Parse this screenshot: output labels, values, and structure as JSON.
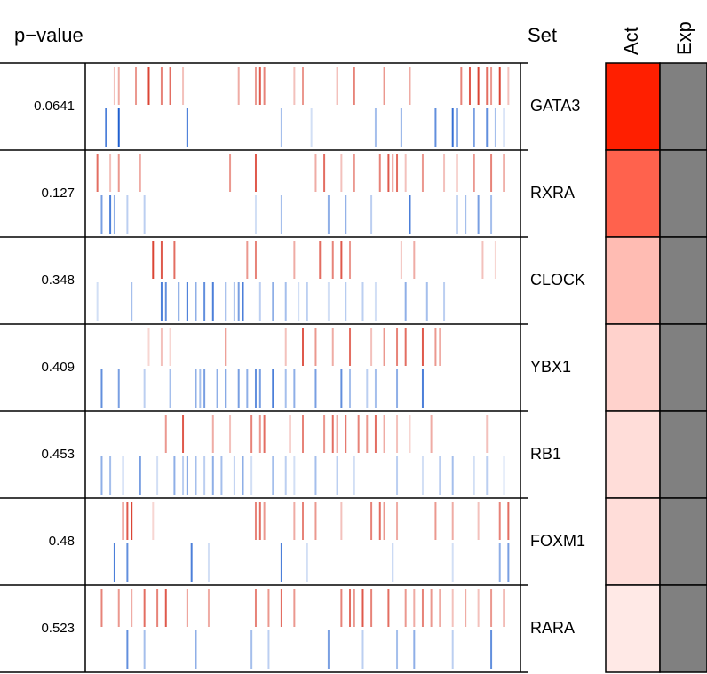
{
  "headers": {
    "pvalue": "p−value",
    "set": "Set",
    "act": "Act",
    "exp": "Exp"
  },
  "colors": {
    "red": "#d7301f",
    "blue": "#1f5fcf",
    "exp": "#808080",
    "act_max": "#ff1f00"
  },
  "chart_data": {
    "type": "barcode",
    "x_range": [
      0,
      1
    ],
    "rows": [
      {
        "set": "GATA3",
        "pvalue": "0.0641",
        "act": 1.0,
        "up": [
          [
            0.06,
            0.3
          ],
          [
            0.07,
            0.4
          ],
          [
            0.11,
            0.5
          ],
          [
            0.14,
            0.9
          ],
          [
            0.17,
            0.6
          ],
          [
            0.19,
            0.7
          ],
          [
            0.22,
            0.3
          ],
          [
            0.35,
            0.4
          ],
          [
            0.39,
            0.5
          ],
          [
            0.4,
            0.8
          ],
          [
            0.41,
            0.6
          ],
          [
            0.48,
            0.3
          ],
          [
            0.5,
            0.5
          ],
          [
            0.58,
            0.3
          ],
          [
            0.62,
            0.6
          ],
          [
            0.69,
            0.5
          ],
          [
            0.75,
            0.4
          ],
          [
            0.87,
            0.6
          ],
          [
            0.89,
            0.8
          ],
          [
            0.91,
            0.9
          ],
          [
            0.93,
            0.7
          ],
          [
            0.94,
            0.5
          ],
          [
            0.96,
            0.9
          ],
          [
            0.98,
            0.3
          ]
        ],
        "down": [
          [
            0.04,
            0.8
          ],
          [
            0.07,
            1.0
          ],
          [
            0.23,
            0.9
          ],
          [
            0.45,
            0.4
          ],
          [
            0.52,
            0.2
          ],
          [
            0.67,
            0.4
          ],
          [
            0.73,
            0.5
          ],
          [
            0.81,
            0.7
          ],
          [
            0.85,
            0.9
          ],
          [
            0.86,
            1.0
          ],
          [
            0.9,
            0.6
          ],
          [
            0.93,
            0.7
          ],
          [
            0.95,
            0.4
          ],
          [
            0.97,
            0.3
          ]
        ]
      },
      {
        "set": "RXRA",
        "pvalue": "0.127",
        "act": 0.7,
        "up": [
          [
            0.02,
            0.7
          ],
          [
            0.05,
            0.3
          ],
          [
            0.07,
            0.5
          ],
          [
            0.12,
            0.4
          ],
          [
            0.33,
            0.5
          ],
          [
            0.39,
            0.8
          ],
          [
            0.53,
            0.4
          ],
          [
            0.55,
            0.7
          ],
          [
            0.59,
            0.3
          ],
          [
            0.62,
            0.5
          ],
          [
            0.68,
            0.6
          ],
          [
            0.7,
            0.8
          ],
          [
            0.71,
            0.5
          ],
          [
            0.72,
            0.7
          ],
          [
            0.74,
            0.3
          ],
          [
            0.78,
            0.5
          ],
          [
            0.83,
            0.3
          ],
          [
            0.86,
            0.4
          ],
          [
            0.9,
            0.5
          ],
          [
            0.94,
            0.6
          ],
          [
            0.97,
            0.7
          ]
        ],
        "down": [
          [
            0.03,
            0.6
          ],
          [
            0.05,
            0.8
          ],
          [
            0.06,
            0.5
          ],
          [
            0.09,
            0.3
          ],
          [
            0.13,
            0.3
          ],
          [
            0.39,
            0.2
          ],
          [
            0.45,
            0.4
          ],
          [
            0.56,
            0.5
          ],
          [
            0.6,
            0.6
          ],
          [
            0.66,
            0.3
          ],
          [
            0.75,
            0.8
          ],
          [
            0.86,
            0.5
          ],
          [
            0.88,
            0.4
          ],
          [
            0.91,
            0.6
          ],
          [
            0.94,
            0.4
          ]
        ]
      },
      {
        "set": "CLOCK",
        "pvalue": "0.348",
        "act": 0.3,
        "up": [
          [
            0.15,
            0.9
          ],
          [
            0.17,
            0.8
          ],
          [
            0.2,
            0.7
          ],
          [
            0.37,
            0.5
          ],
          [
            0.39,
            0.6
          ],
          [
            0.48,
            0.4
          ],
          [
            0.54,
            0.7
          ],
          [
            0.57,
            0.6
          ],
          [
            0.59,
            0.8
          ],
          [
            0.61,
            0.5
          ],
          [
            0.73,
            0.3
          ],
          [
            0.76,
            0.4
          ],
          [
            0.92,
            0.3
          ],
          [
            0.95,
            0.2
          ]
        ],
        "down": [
          [
            0.02,
            0.2
          ],
          [
            0.1,
            0.4
          ],
          [
            0.17,
            0.8
          ],
          [
            0.18,
            0.7
          ],
          [
            0.21,
            0.6
          ],
          [
            0.23,
            0.9
          ],
          [
            0.25,
            0.5
          ],
          [
            0.27,
            0.7
          ],
          [
            0.29,
            0.8
          ],
          [
            0.32,
            0.5
          ],
          [
            0.34,
            0.4
          ],
          [
            0.35,
            0.6
          ],
          [
            0.36,
            0.8
          ],
          [
            0.4,
            0.3
          ],
          [
            0.43,
            0.5
          ],
          [
            0.46,
            0.4
          ],
          [
            0.49,
            0.2
          ],
          [
            0.51,
            0.3
          ],
          [
            0.56,
            0.2
          ],
          [
            0.6,
            0.4
          ],
          [
            0.64,
            0.3
          ],
          [
            0.67,
            0.2
          ],
          [
            0.74,
            0.5
          ],
          [
            0.79,
            0.4
          ],
          [
            0.83,
            0.3
          ]
        ]
      },
      {
        "set": "YBX1",
        "pvalue": "0.409",
        "act": 0.2,
        "up": [
          [
            0.14,
            0.2
          ],
          [
            0.17,
            0.3
          ],
          [
            0.19,
            0.2
          ],
          [
            0.32,
            0.6
          ],
          [
            0.46,
            0.3
          ],
          [
            0.5,
            0.8
          ],
          [
            0.53,
            0.5
          ],
          [
            0.57,
            0.4
          ],
          [
            0.61,
            0.7
          ],
          [
            0.66,
            0.3
          ],
          [
            0.69,
            0.5
          ],
          [
            0.72,
            0.6
          ],
          [
            0.74,
            0.7
          ],
          [
            0.78,
            0.8
          ],
          [
            0.81,
            0.5
          ],
          [
            0.82,
            0.4
          ]
        ],
        "down": [
          [
            0.03,
            0.7
          ],
          [
            0.07,
            0.6
          ],
          [
            0.13,
            0.3
          ],
          [
            0.19,
            0.4
          ],
          [
            0.25,
            0.5
          ],
          [
            0.26,
            0.4
          ],
          [
            0.27,
            0.6
          ],
          [
            0.3,
            0.5
          ],
          [
            0.32,
            0.7
          ],
          [
            0.35,
            0.6
          ],
          [
            0.37,
            0.5
          ],
          [
            0.39,
            0.7
          ],
          [
            0.4,
            0.6
          ],
          [
            0.43,
            0.8
          ],
          [
            0.46,
            0.4
          ],
          [
            0.48,
            0.5
          ],
          [
            0.53,
            0.6
          ],
          [
            0.59,
            0.7
          ],
          [
            0.61,
            0.4
          ],
          [
            0.65,
            0.3
          ],
          [
            0.67,
            0.4
          ],
          [
            0.72,
            0.5
          ],
          [
            0.78,
            0.8
          ]
        ]
      },
      {
        "set": "RB1",
        "pvalue": "0.453",
        "act": 0.15,
        "up": [
          [
            0.18,
            0.5
          ],
          [
            0.22,
            0.8
          ],
          [
            0.29,
            0.4
          ],
          [
            0.33,
            0.3
          ],
          [
            0.38,
            0.6
          ],
          [
            0.4,
            0.5
          ],
          [
            0.41,
            0.7
          ],
          [
            0.47,
            0.4
          ],
          [
            0.5,
            0.6
          ],
          [
            0.55,
            0.5
          ],
          [
            0.57,
            0.7
          ],
          [
            0.58,
            0.4
          ],
          [
            0.6,
            0.8
          ],
          [
            0.63,
            0.6
          ],
          [
            0.65,
            0.5
          ],
          [
            0.67,
            0.7
          ],
          [
            0.69,
            0.4
          ],
          [
            0.72,
            0.3
          ],
          [
            0.75,
            0.2
          ],
          [
            0.8,
            0.4
          ],
          [
            0.93,
            0.3
          ]
        ],
        "down": [
          [
            0.03,
            0.5
          ],
          [
            0.05,
            0.4
          ],
          [
            0.08,
            0.3
          ],
          [
            0.12,
            0.6
          ],
          [
            0.16,
            0.2
          ],
          [
            0.2,
            0.5
          ],
          [
            0.22,
            0.3
          ],
          [
            0.23,
            0.6
          ],
          [
            0.25,
            0.4
          ],
          [
            0.27,
            0.3
          ],
          [
            0.29,
            0.5
          ],
          [
            0.31,
            0.4
          ],
          [
            0.34,
            0.3
          ],
          [
            0.36,
            0.5
          ],
          [
            0.38,
            0.2
          ],
          [
            0.43,
            0.4
          ],
          [
            0.46,
            0.3
          ],
          [
            0.48,
            0.2
          ],
          [
            0.53,
            0.4
          ],
          [
            0.58,
            0.3
          ],
          [
            0.62,
            0.2
          ],
          [
            0.72,
            0.3
          ],
          [
            0.78,
            0.2
          ],
          [
            0.82,
            0.3
          ],
          [
            0.85,
            0.4
          ],
          [
            0.9,
            0.2
          ],
          [
            0.93,
            0.3
          ],
          [
            0.97,
            0.2
          ]
        ]
      },
      {
        "set": "FOXM1",
        "pvalue": "0.48",
        "act": 0.15,
        "up": [
          [
            0.08,
            0.7
          ],
          [
            0.09,
            0.8
          ],
          [
            0.1,
            0.9
          ],
          [
            0.15,
            0.2
          ],
          [
            0.39,
            0.6
          ],
          [
            0.4,
            0.7
          ],
          [
            0.41,
            0.5
          ],
          [
            0.48,
            0.4
          ],
          [
            0.5,
            0.6
          ],
          [
            0.53,
            0.5
          ],
          [
            0.59,
            0.3
          ],
          [
            0.66,
            0.6
          ],
          [
            0.68,
            0.7
          ],
          [
            0.69,
            0.5
          ],
          [
            0.72,
            0.4
          ],
          [
            0.81,
            0.5
          ],
          [
            0.85,
            0.4
          ],
          [
            0.91,
            0.3
          ],
          [
            0.96,
            0.6
          ],
          [
            0.98,
            0.7
          ]
        ],
        "down": [
          [
            0.06,
            0.8
          ],
          [
            0.09,
            0.7
          ],
          [
            0.24,
            0.8
          ],
          [
            0.28,
            0.2
          ],
          [
            0.45,
            0.8
          ],
          [
            0.51,
            0.2
          ],
          [
            0.71,
            0.3
          ],
          [
            0.85,
            0.2
          ],
          [
            0.96,
            0.5
          ],
          [
            0.98,
            0.6
          ]
        ]
      },
      {
        "set": "RARA",
        "pvalue": "0.523",
        "act": 0.1,
        "up": [
          [
            0.03,
            0.6
          ],
          [
            0.07,
            0.5
          ],
          [
            0.1,
            0.4
          ],
          [
            0.13,
            0.7
          ],
          [
            0.16,
            0.6
          ],
          [
            0.18,
            0.8
          ],
          [
            0.23,
            0.5
          ],
          [
            0.28,
            0.4
          ],
          [
            0.39,
            0.6
          ],
          [
            0.42,
            0.5
          ],
          [
            0.45,
            0.7
          ],
          [
            0.48,
            0.5
          ],
          [
            0.59,
            0.6
          ],
          [
            0.61,
            0.7
          ],
          [
            0.62,
            0.5
          ],
          [
            0.64,
            0.8
          ],
          [
            0.66,
            0.6
          ],
          [
            0.7,
            0.7
          ],
          [
            0.74,
            0.5
          ],
          [
            0.76,
            0.4
          ],
          [
            0.78,
            0.6
          ],
          [
            0.8,
            0.5
          ],
          [
            0.82,
            0.4
          ],
          [
            0.85,
            0.3
          ],
          [
            0.88,
            0.4
          ],
          [
            0.91,
            0.3
          ],
          [
            0.94,
            0.5
          ],
          [
            0.97,
            0.6
          ]
        ],
        "down": [
          [
            0.09,
            0.7
          ],
          [
            0.13,
            0.4
          ],
          [
            0.25,
            0.5
          ],
          [
            0.38,
            0.4
          ],
          [
            0.42,
            0.3
          ],
          [
            0.56,
            0.6
          ],
          [
            0.64,
            0.3
          ],
          [
            0.72,
            0.4
          ],
          [
            0.76,
            0.5
          ],
          [
            0.85,
            0.3
          ],
          [
            0.94,
            0.7
          ]
        ]
      }
    ]
  }
}
